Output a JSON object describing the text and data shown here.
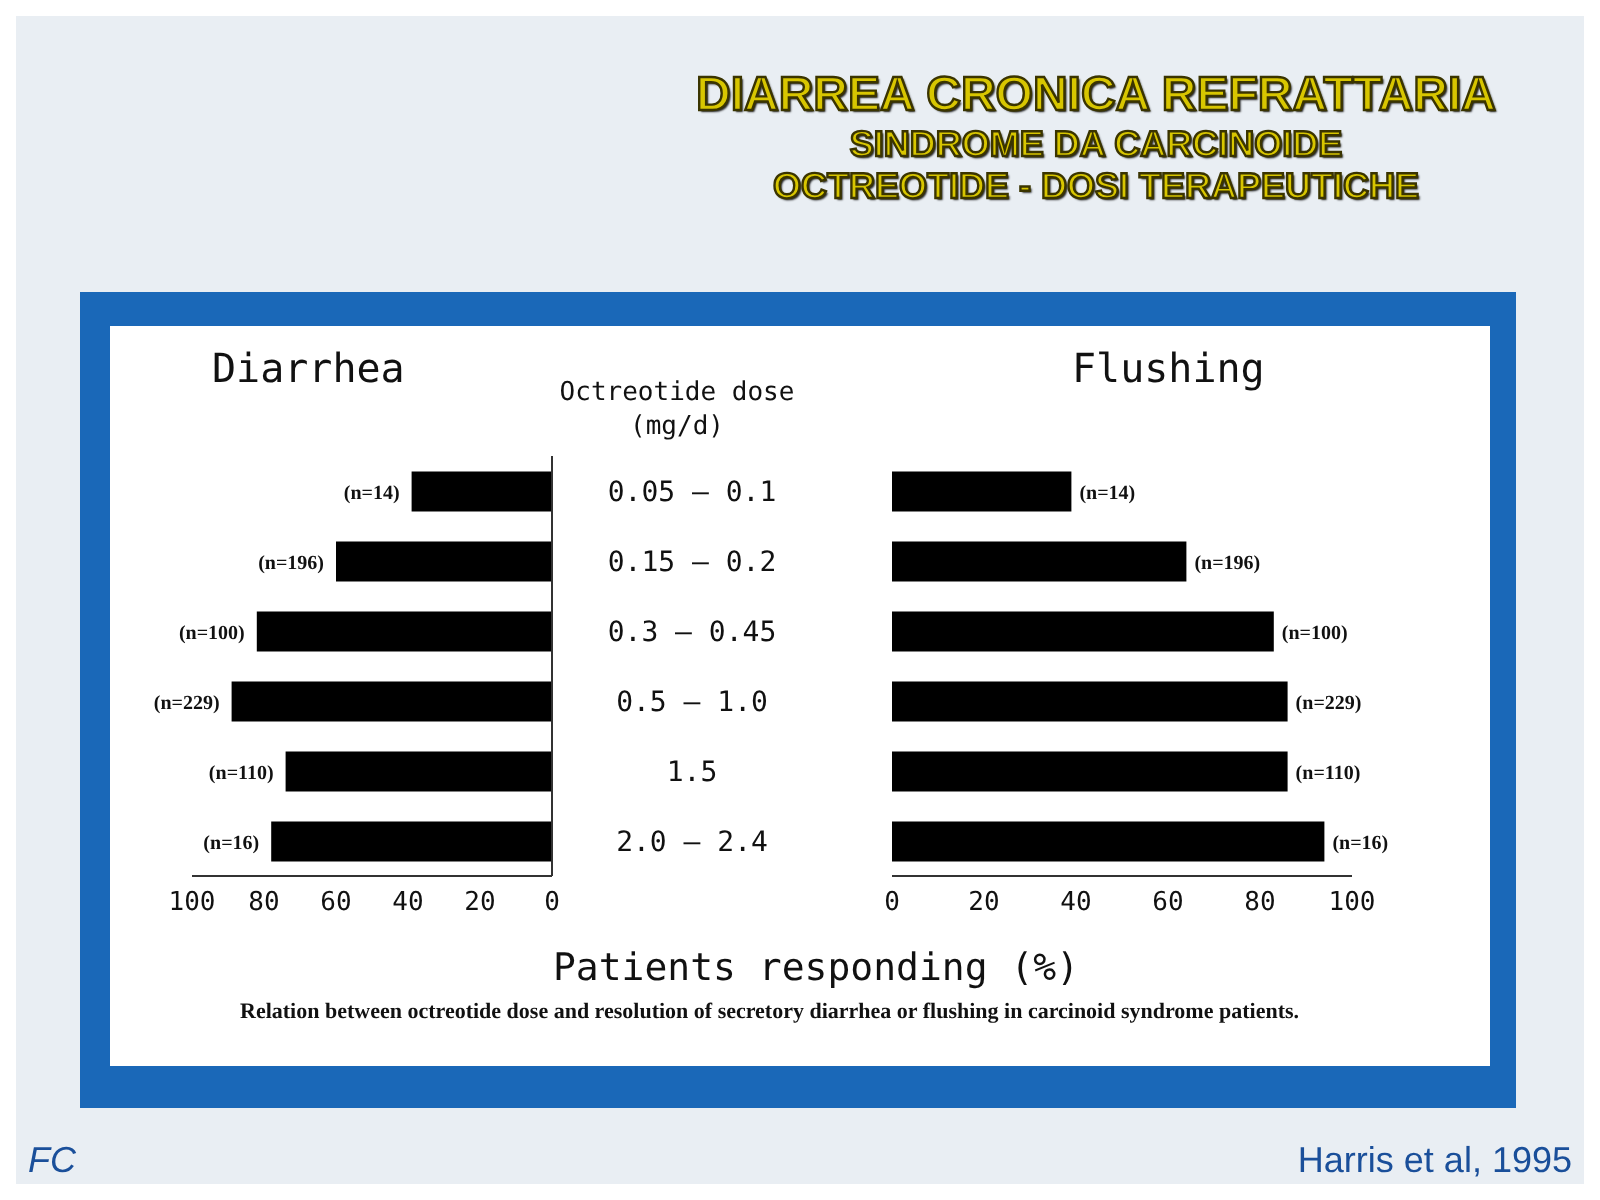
{
  "chart_data": [
    {
      "type": "bar",
      "orientation": "horizontal",
      "title": "Diarrhea",
      "ylabel": "Octreotide dose (mg/d)",
      "xlabel": "Patients responding (%)",
      "categories": [
        "0.05 – 0.1",
        "0.15 – 0.2",
        "0.3 – 0.45",
        "0.5 – 1.0",
        "1.5",
        "2.0 – 2.4"
      ],
      "series": [
        {
          "color": "#000000",
          "values": [
            39,
            60,
            82,
            89,
            74,
            78
          ]
        }
      ],
      "xlim": [
        100,
        0
      ],
      "xticks": [
        100,
        80,
        60,
        40,
        20,
        0
      ],
      "annotations": [
        "DIARREA CRONICA REFRATTARIA",
        "SINDROME DA CARCINOIDE",
        "OCTREOTIDE - DOSI TERAPEUTICHE",
        "Relation between octreotide dose and resolution of secretory diarrhea or flushing in carcinoid syndrome patients.",
        "FC",
        "Harris et al, 1995",
        {
          "text": "(n=14)",
          "x": 39,
          "y": "0.05 – 0.1"
        },
        {
          "text": "(n=196)",
          "x": 60,
          "y": "0.15 – 0.2"
        },
        {
          "text": "(n=100)",
          "x": 82,
          "y": "0.3 – 0.45"
        },
        {
          "text": "(n=229)",
          "x": 89,
          "y": "0.5 – 1.0"
        },
        {
          "text": "(n=110)",
          "x": 74,
          "y": "1.5"
        },
        {
          "text": "(n=16)",
          "x": 78,
          "y": "2.0 – 2.4"
        }
      ]
    },
    {
      "type": "bar",
      "orientation": "horizontal",
      "title": "Flushing",
      "categories": [
        "0.05 – 0.1",
        "0.15 – 0.2",
        "0.3 – 0.45",
        "0.5 – 1.0",
        "1.5",
        "2.0 – 2.4"
      ],
      "series": [
        {
          "color": "#000000",
          "values": [
            39,
            64,
            83,
            86,
            86,
            94
          ]
        }
      ],
      "xlim": [
        0,
        100
      ],
      "xticks": [
        0,
        20,
        40,
        60,
        80,
        100
      ],
      "tick_labels": "x",
      "annotations": [
        {
          "text": "(n=14)",
          "x": 39,
          "y": "0.05 – 0.1"
        },
        {
          "text": "(n=196)",
          "x": 64,
          "y": "0.15 – 0.2"
        },
        {
          "text": "(n=100)",
          "x": 83,
          "y": "0.3 – 0.45"
        },
        {
          "text": "(n=229)",
          "x": 86,
          "y": "0.5 – 1.0"
        },
        {
          "text": "(n=110)",
          "x": 86,
          "y": "1.5"
        },
        {
          "text": "(n=16)",
          "x": 94,
          "y": "2.0 – 2.4"
        }
      ]
    }
  ]
}
